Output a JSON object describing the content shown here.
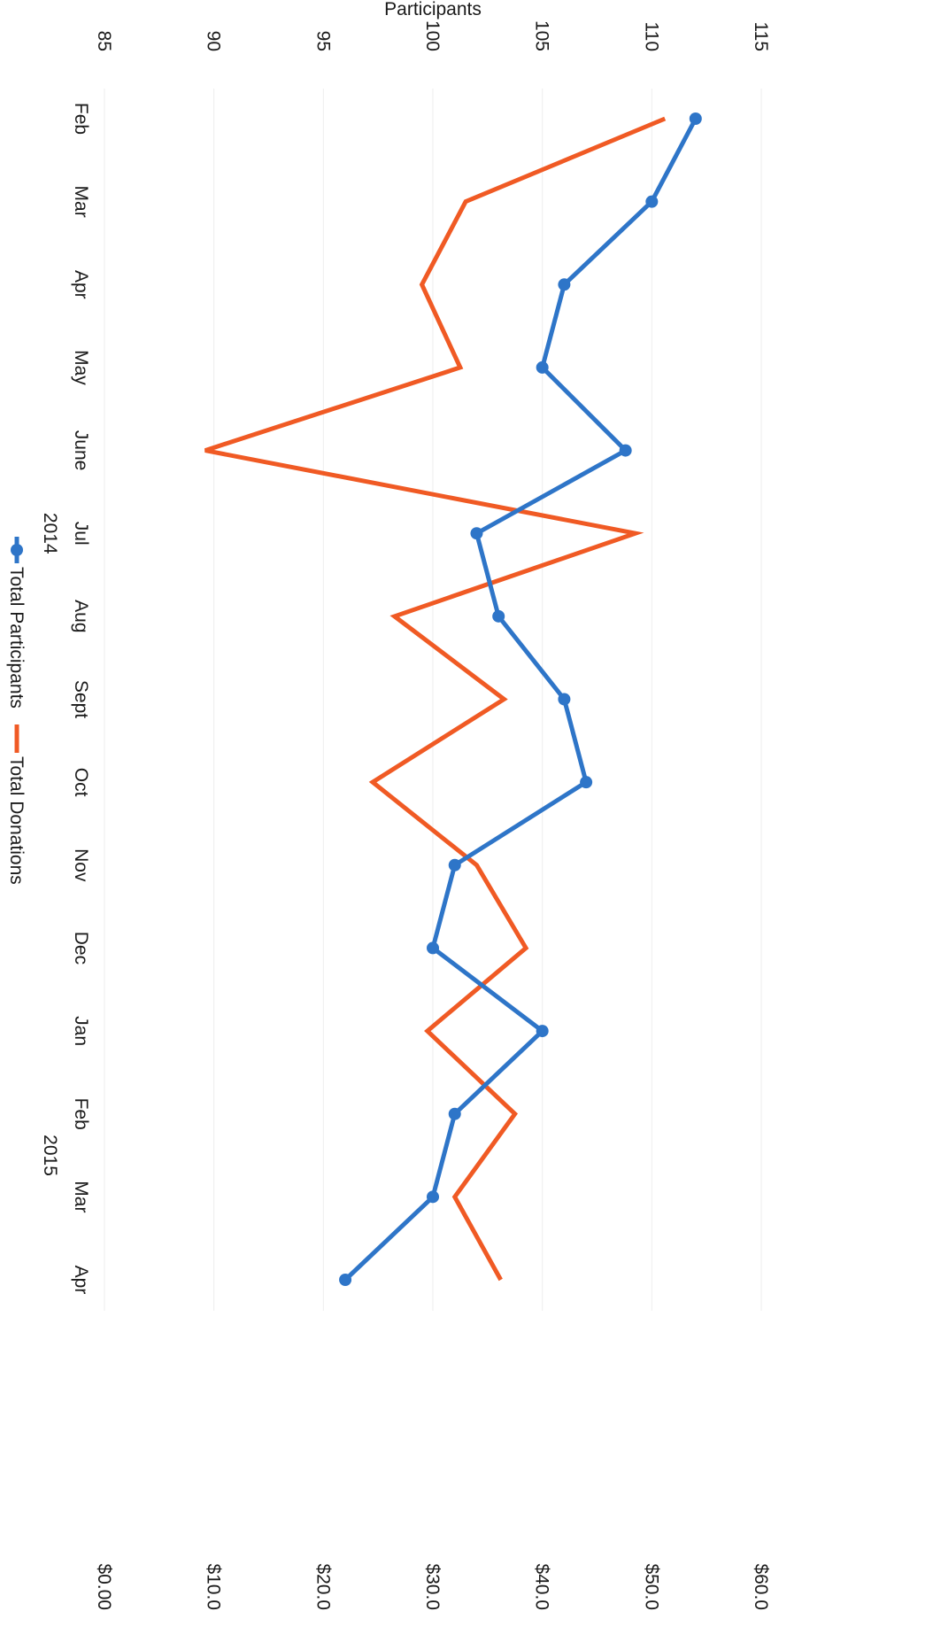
{
  "chart_data": {
    "type": "line",
    "orientation": "rotated-90-clockwise",
    "categories": [
      "Feb",
      "Mar",
      "Apr",
      "May",
      "June",
      "Jul",
      "Aug",
      "Sept",
      "Oct",
      "Nov",
      "Dec",
      "Jan",
      "Feb",
      "Mar",
      "Apr"
    ],
    "year_groups": [
      {
        "label": "2014",
        "from_index": 0,
        "to_index": 10
      },
      {
        "label": "2015",
        "from_index": 11,
        "to_index": 14
      }
    ],
    "y_left": {
      "label": "Participants",
      "ticks": [
        "85",
        "90",
        "95",
        "100",
        "105",
        "110",
        "115"
      ],
      "range": [
        85,
        115
      ]
    },
    "y_right": {
      "label": "",
      "ticks": [
        "$0.00",
        "$10.0",
        "$20.0",
        "$30.0",
        "$40.0",
        "$50.0",
        "$60.0"
      ],
      "range": [
        0,
        60
      ]
    },
    "series": [
      {
        "name": "Total Participants",
        "axis": "left",
        "color": "#2e75c8",
        "markers": true,
        "values": [
          112,
          110,
          106,
          105,
          108.8,
          102,
          103,
          106,
          107,
          101,
          100,
          105,
          101,
          100,
          96
        ]
      },
      {
        "name": "Total Donations",
        "axis": "right",
        "color": "#f05a24",
        "markers": false,
        "values": [
          51.2,
          33,
          29,
          32.5,
          9.2,
          48.5,
          26.5,
          36.5,
          24.5,
          34,
          38.5,
          29.5,
          37.5,
          32,
          36.2
        ]
      }
    ],
    "grid": "horizontal-light",
    "legend_position": "bottom"
  }
}
